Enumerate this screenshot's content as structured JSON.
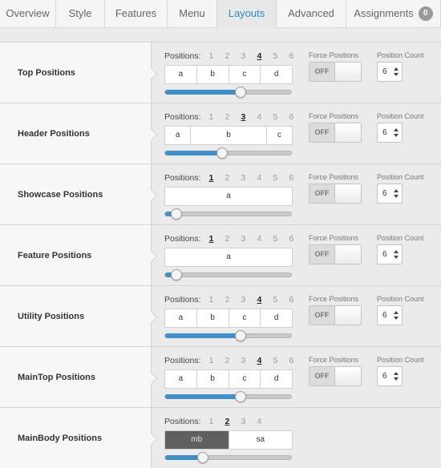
{
  "tabs": [
    {
      "label": "Overview"
    },
    {
      "label": "Style"
    },
    {
      "label": "Features"
    },
    {
      "label": "Menu"
    },
    {
      "label": "Layouts",
      "active": true
    },
    {
      "label": "Advanced"
    },
    {
      "label": "Assignments",
      "badge": "0"
    }
  ],
  "common": {
    "positions_label": "Positions:",
    "force_label": "Force Positions",
    "toggle_off": "OFF",
    "count_label": "Position Count"
  },
  "accent_color": "#3f8fc9",
  "rows": [
    {
      "title": "Top Positions",
      "numbers": [
        "1",
        "2",
        "3",
        "4",
        "5",
        "6"
      ],
      "selected": "4",
      "cells": [
        "a",
        "b",
        "c",
        "d"
      ],
      "slider_percent": 60,
      "count": "6"
    },
    {
      "title": "Header Positions",
      "numbers": [
        "1",
        "2",
        "3",
        "4",
        "5",
        "6"
      ],
      "selected": "3",
      "cells": [
        "a",
        "b",
        "c"
      ],
      "cell_widths": [
        1,
        3,
        1
      ],
      "slider_percent": 45,
      "count": "6"
    },
    {
      "title": "Showcase Positions",
      "numbers": [
        "1",
        "2",
        "3",
        "4",
        "5",
        "6"
      ],
      "selected": "1",
      "cells": [
        "a"
      ],
      "slider_percent": 9,
      "count": "6"
    },
    {
      "title": "Feature Positions",
      "numbers": [
        "1",
        "2",
        "3",
        "4",
        "5",
        "6"
      ],
      "selected": "1",
      "cells": [
        "a"
      ],
      "slider_percent": 9,
      "count": "6"
    },
    {
      "title": "Utility Positions",
      "numbers": [
        "1",
        "2",
        "3",
        "4",
        "5",
        "6"
      ],
      "selected": "4",
      "cells": [
        "a",
        "b",
        "c",
        "d"
      ],
      "slider_percent": 60,
      "count": "6"
    },
    {
      "title": "MainTop Positions",
      "numbers": [
        "1",
        "2",
        "3",
        "4",
        "5",
        "6"
      ],
      "selected": "4",
      "cells": [
        "a",
        "b",
        "c",
        "d"
      ],
      "slider_percent": 60,
      "count": "6"
    },
    {
      "title": "MainBody Positions",
      "numbers": [
        "1",
        "2",
        "3",
        "4"
      ],
      "selected": "2",
      "cells": [
        "mb",
        "sa"
      ],
      "dark_first": true,
      "slider_percent": 30,
      "no_force": true
    }
  ]
}
